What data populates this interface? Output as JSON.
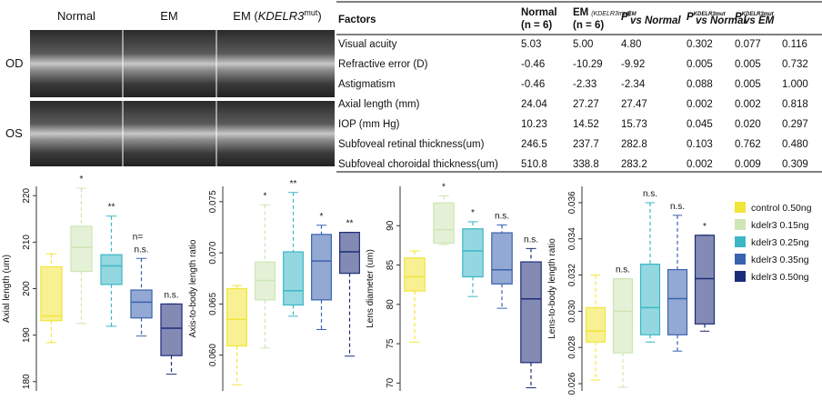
{
  "images": {
    "columns": [
      {
        "text": "Normal"
      },
      {
        "text": "EM"
      },
      {
        "prefix": "EM (",
        "gene": "KDELR3",
        "sup": "mut",
        "suffix": ")"
      }
    ],
    "rows": [
      "OD",
      "OS"
    ]
  },
  "table": {
    "header": [
      {
        "lines": [
          "Factors"
        ]
      },
      {
        "lines": [
          "Normal",
          "(n = 6)"
        ]
      },
      {
        "lines": [
          "EM",
          "(n = 6)"
        ],
        "extra": "(KDELR3mut)"
      },
      {
        "symbol": "P",
        "sup": "EM",
        "sub": "vs Normal"
      },
      {
        "symbol": "P",
        "sup": "KDELR3mut",
        "sub": "vs Normal"
      },
      {
        "symbol": "P",
        "sup": "KDELR3mut",
        "sub": "vs EM"
      }
    ],
    "rows": [
      [
        "Visual acuity",
        "5.03",
        "5.00",
        "4.80",
        "0.302",
        "0.077",
        "0.116"
      ],
      [
        "Refractive error (D)",
        "-0.46",
        "-10.29",
        "-9.92",
        "0.005",
        "0.005",
        "0.732"
      ],
      [
        "Astigmatism",
        "-0.46",
        "-2.33",
        "-2.34",
        "0.088",
        "0.005",
        "1.000"
      ],
      [
        "Axial length (mm)",
        "24.04",
        "27.27",
        "27.47",
        "0.002",
        "0.002",
        "0.818"
      ],
      [
        "IOP (mm Hg)",
        "10.23",
        "14.52",
        "15.73",
        "0.045",
        "0.020",
        "0.297"
      ],
      [
        "Subfoveal retinal thickness(um)",
        "246.5",
        "237.7",
        "282.8",
        "0.103",
        "0.762",
        "0.480"
      ],
      [
        "Subfoveal choroidal thickness(um)",
        "510.8",
        "338.8",
        "283.2",
        "0.002",
        "0.009",
        "0.309"
      ]
    ]
  },
  "legend": [
    {
      "name": "control 0.50ng",
      "color": "#f2e53a"
    },
    {
      "name": "kdelr3 0.15ng",
      "color": "#cde6b4"
    },
    {
      "name": "kdelr3 0.25ng",
      "color": "#3db7c6"
    },
    {
      "name": "kdelr3 0.35ng",
      "color": "#3a62ae"
    },
    {
      "name": "kdelr3 0.50ng",
      "color": "#1d2c78"
    }
  ],
  "chart_data": [
    {
      "type": "box",
      "ylabel": "Axial length (um)",
      "ylim": [
        178,
        222
      ],
      "yticks": [
        180,
        190,
        200,
        210,
        220
      ],
      "boxes": [
        {
          "low": 188.4,
          "q1": 193.1,
          "median": 194.1,
          "q3": 204.7,
          "high": 207.5
        },
        {
          "low": 192.5,
          "q1": 203.7,
          "median": 208.9,
          "q3": 213.4,
          "high": 221.6
        },
        {
          "low": 191.9,
          "q1": 200.9,
          "median": 204.9,
          "q3": 207.3,
          "high": 215.6
        },
        {
          "low": 189.8,
          "q1": 193.7,
          "median": 197.1,
          "q3": 199.7,
          "high": 206.5
        },
        {
          "low": 181.6,
          "q1": 185.6,
          "median": 191.5,
          "q3": 196.7,
          "high": 196.7
        }
      ],
      "significance": [
        null,
        "*",
        "**",
        "n.s.",
        "n.s."
      ],
      "annotation": "n="
    },
    {
      "type": "box",
      "ylabel": "Axis-to-body length ratio",
      "ylim": [
        0.0565,
        0.0765
      ],
      "yticks": [
        {
          "value": 0.06,
          "label": "0.060"
        },
        {
          "value": 0.065,
          "label": "0.065"
        },
        {
          "value": 0.07,
          "label": "0.070"
        },
        {
          "value": 0.075,
          "label": "0.075"
        }
      ],
      "boxes": [
        {
          "low": 0.0571,
          "q1": 0.0609,
          "median": 0.0635,
          "q3": 0.0665,
          "high": 0.0668
        },
        {
          "low": 0.0607,
          "q1": 0.0654,
          "median": 0.0673,
          "q3": 0.0691,
          "high": 0.0747
        },
        {
          "low": 0.0638,
          "q1": 0.0649,
          "median": 0.0663,
          "q3": 0.0701,
          "high": 0.0759
        },
        {
          "low": 0.0625,
          "q1": 0.0654,
          "median": 0.0692,
          "q3": 0.0718,
          "high": 0.0727
        },
        {
          "low": 0.0599,
          "q1": 0.068,
          "median": 0.0701,
          "q3": 0.072,
          "high": 0.072
        }
      ],
      "significance": [
        null,
        "*",
        "**",
        "*",
        "**"
      ]
    },
    {
      "type": "box",
      "ylabel": "Lens diameter (um)",
      "ylim": [
        69,
        95
      ],
      "yticks": [
        70,
        75,
        80,
        85,
        90
      ],
      "boxes": [
        {
          "low": 75.2,
          "q1": 81.7,
          "median": 83.5,
          "q3": 85.9,
          "high": 86.8
        },
        {
          "low": 87.6,
          "q1": 87.8,
          "median": 89.5,
          "q3": 92.9,
          "high": 93.8
        },
        {
          "low": 81.0,
          "q1": 83.5,
          "median": 86.8,
          "q3": 89.6,
          "high": 90.5
        },
        {
          "low": 79.5,
          "q1": 82.6,
          "median": 84.4,
          "q3": 89.1,
          "high": 90.1
        },
        {
          "low": 69.4,
          "q1": 72.6,
          "median": 80.7,
          "q3": 85.4,
          "high": 87.1
        }
      ],
      "significance": [
        null,
        "*",
        "*",
        "n.s.",
        "n.s."
      ]
    },
    {
      "type": "box",
      "ylabel": "Lens-to-body length ratio",
      "ylim": [
        0.0256,
        0.0369
      ],
      "yticks": [
        {
          "value": 0.026,
          "label": "0.026"
        },
        {
          "value": 0.028,
          "label": "0.028"
        },
        {
          "value": 0.03,
          "label": "0.030"
        },
        {
          "value": 0.032,
          "label": "0.032"
        },
        {
          "value": 0.034,
          "label": "0.034"
        },
        {
          "value": 0.036,
          "label": "0.036"
        }
      ],
      "boxes": [
        {
          "low": 0.0262,
          "q1": 0.0283,
          "median": 0.0289,
          "q3": 0.0302,
          "high": 0.032
        },
        {
          "low": 0.0258,
          "q1": 0.0277,
          "median": 0.03,
          "q3": 0.0318,
          "high": 0.0318
        },
        {
          "low": 0.0283,
          "q1": 0.0287,
          "median": 0.0302,
          "q3": 0.0326,
          "high": 0.036
        },
        {
          "low": 0.0278,
          "q1": 0.0287,
          "median": 0.0307,
          "q3": 0.0323,
          "high": 0.0353
        },
        {
          "low": 0.0289,
          "q1": 0.0293,
          "median": 0.0318,
          "q3": 0.0342,
          "high": 0.0342
        }
      ],
      "significance": [
        null,
        "n.s.",
        "n.s.",
        "n.s.",
        "*"
      ]
    }
  ]
}
